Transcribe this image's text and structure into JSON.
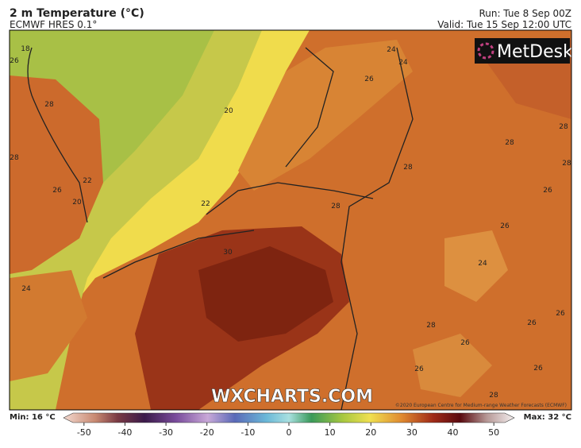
{
  "header": {
    "title": "2 m Temperature (°C)",
    "model": "ECMWF HRES 0.1°",
    "run": "Run: Tue 8 Sep 00Z",
    "valid": "Valid: Tue 15 Sep 12:00 UTC"
  },
  "logo": "MetDesk",
  "watermark": "WXCHARTS.COM",
  "copyright": "©2020 European Centre for Medium-range Weather Forecasts (ECMWF)",
  "footer": {
    "min": "Min: 16 °C",
    "max": "Max: 32 °C"
  },
  "colorbar": {
    "lim": [
      -55,
      55
    ],
    "ticks": [
      -50,
      -40,
      -30,
      -20,
      -10,
      0,
      10,
      20,
      30,
      40,
      50
    ]
  },
  "contour_labels": [
    18,
    26,
    24,
    24,
    26,
    28,
    20,
    28,
    28,
    28,
    28,
    28,
    26,
    22,
    20,
    26,
    22,
    28,
    26,
    30,
    24,
    24,
    26,
    28,
    26,
    26,
    26,
    26,
    28
  ]
}
